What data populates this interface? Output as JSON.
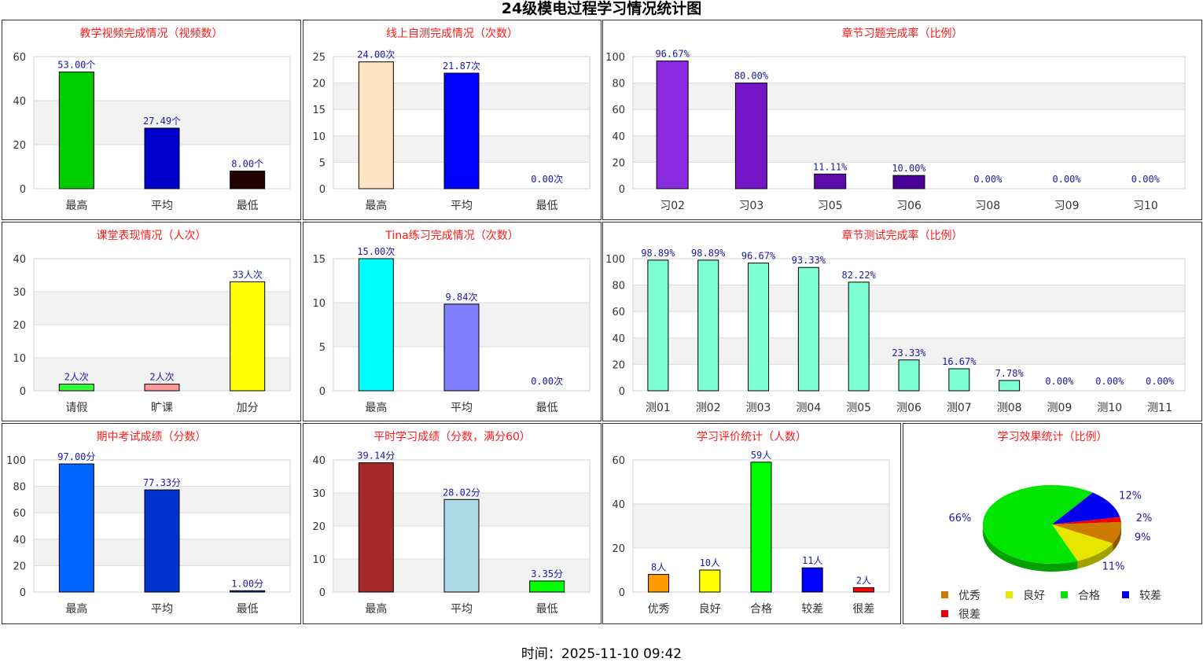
{
  "page": {
    "title": "24级模电过程学习情况统计图",
    "timestamp": "时间：2025-11-10 09:42"
  },
  "chart_data": [
    {
      "id": "c1",
      "type": "bar",
      "title": "教学视频完成情况（视频数）",
      "categories": [
        "最高",
        "平均",
        "最低"
      ],
      "values": [
        53.0,
        27.49,
        8.0
      ],
      "labels": [
        "53.00个",
        "27.49个",
        "8.00个"
      ],
      "colors": [
        "#00cc00",
        "#0000cc",
        "#200000"
      ],
      "ylim": [
        0,
        60
      ],
      "yticks": [
        0,
        20,
        40,
        60
      ],
      "grid": true
    },
    {
      "id": "c2",
      "type": "bar",
      "title": "线上自测完成情况（次数）",
      "categories": [
        "最高",
        "平均",
        "最低"
      ],
      "values": [
        24.0,
        21.87,
        0.0
      ],
      "labels": [
        "24.00次",
        "21.87次",
        "0.00次"
      ],
      "colors": [
        "#ffe4c4",
        "#0000ff",
        "#0000ff"
      ],
      "ylim": [
        0,
        25
      ],
      "yticks": [
        0,
        5,
        10,
        15,
        20,
        25
      ],
      "grid": true
    },
    {
      "id": "c3",
      "type": "bar",
      "title": "章节习题完成率（比例）",
      "categories": [
        "习02",
        "习03",
        "习05",
        "习06",
        "习08",
        "习09",
        "习10"
      ],
      "values": [
        96.67,
        80.0,
        11.11,
        10.0,
        0.0,
        0.0,
        0.0
      ],
      "labels": [
        "96.67%",
        "80.00%",
        "11.11%",
        "10.00%",
        "0.00%",
        "0.00%",
        "0.00%"
      ],
      "colors": [
        "#8a2be2",
        "#7416c8",
        "#5c0cad",
        "#4b0099",
        "#4b0099",
        "#4b0099",
        "#4b0099"
      ],
      "ylim": [
        0,
        100
      ],
      "yticks": [
        0,
        20,
        40,
        60,
        80,
        100
      ],
      "grid": true
    },
    {
      "id": "c4",
      "type": "bar",
      "title": "课堂表现情况（人次）",
      "categories": [
        "请假",
        "旷课",
        "加分"
      ],
      "values": [
        2,
        2,
        33
      ],
      "labels": [
        "2人次",
        "2人次",
        "33人次"
      ],
      "colors": [
        "#33ff33",
        "#ff9999",
        "#ffff00"
      ],
      "ylim": [
        0,
        40
      ],
      "yticks": [
        0,
        10,
        20,
        30,
        40
      ],
      "grid": true
    },
    {
      "id": "c5",
      "type": "bar",
      "title": "Tina练习完成情况（次数）",
      "categories": [
        "最高",
        "平均",
        "最低"
      ],
      "values": [
        15.0,
        9.84,
        0.0
      ],
      "labels": [
        "15.00次",
        "9.84次",
        "0.00次"
      ],
      "colors": [
        "#00ffff",
        "#8080ff",
        "#8080ff"
      ],
      "ylim": [
        0,
        15
      ],
      "yticks": [
        0,
        5,
        10,
        15
      ],
      "grid": true
    },
    {
      "id": "c6",
      "type": "bar",
      "title": "章节测试完成率（比例）",
      "categories": [
        "测01",
        "测02",
        "测03",
        "测04",
        "测05",
        "测06",
        "测07",
        "测08",
        "测09",
        "测10",
        "测11"
      ],
      "values": [
        98.89,
        98.89,
        96.67,
        93.33,
        82.22,
        23.33,
        16.67,
        7.78,
        0.0,
        0.0,
        0.0
      ],
      "labels": [
        "98.89%",
        "98.89%",
        "96.67%",
        "93.33%",
        "82.22%",
        "23.33%",
        "16.67%",
        "7.78%",
        "0.00%",
        "0.00%",
        "0.00%"
      ],
      "colors": [
        "#7fffd4"
      ],
      "ylim": [
        0,
        100
      ],
      "yticks": [
        0,
        20,
        40,
        60,
        80,
        100
      ],
      "grid": true
    },
    {
      "id": "c7",
      "type": "bar",
      "title": "期中考试成绩（分数）",
      "categories": [
        "最高",
        "平均",
        "最低"
      ],
      "values": [
        97.0,
        77.33,
        1.0
      ],
      "labels": [
        "97.00分",
        "77.33分",
        "1.00分"
      ],
      "colors": [
        "#0066ff",
        "#0033cc",
        "#0033cc"
      ],
      "ylim": [
        0,
        100
      ],
      "yticks": [
        0,
        20,
        40,
        60,
        80,
        100
      ],
      "grid": true
    },
    {
      "id": "c8",
      "type": "bar",
      "title": "平时学习成绩（分数，满分60）",
      "categories": [
        "最高",
        "平均",
        "最低"
      ],
      "values": [
        39.14,
        28.02,
        3.35
      ],
      "labels": [
        "39.14分",
        "28.02分",
        "3.35分"
      ],
      "colors": [
        "#a52a2a",
        "#add8e6",
        "#00ff00"
      ],
      "ylim": [
        0,
        40
      ],
      "yticks": [
        0,
        10,
        20,
        30,
        40
      ],
      "grid": true
    },
    {
      "id": "c9",
      "type": "bar",
      "title": "学习评价统计（人数）",
      "categories": [
        "优秀",
        "良好",
        "合格",
        "较差",
        "很差"
      ],
      "values": [
        8,
        10,
        59,
        11,
        2
      ],
      "labels": [
        "8人",
        "10人",
        "59人",
        "11人",
        "2人"
      ],
      "colors": [
        "#ff9900",
        "#ffff00",
        "#00ff00",
        "#0000ff",
        "#ff0000"
      ],
      "ylim": [
        0,
        60
      ],
      "yticks": [
        0,
        20,
        40,
        60
      ],
      "grid": true
    },
    {
      "id": "c10",
      "type": "pie",
      "title": "学习效果统计（比例）",
      "categories": [
        "优秀",
        "良好",
        "合格",
        "较差",
        "很差"
      ],
      "values": [
        9,
        11,
        66,
        12,
        2
      ],
      "labels": [
        "9%",
        "11%",
        "66%",
        "12%",
        "2%"
      ],
      "colors": [
        "#cc7a00",
        "#e6e600",
        "#00e600",
        "#0000ee",
        "#ee0000"
      ],
      "legend": "bottom"
    }
  ]
}
